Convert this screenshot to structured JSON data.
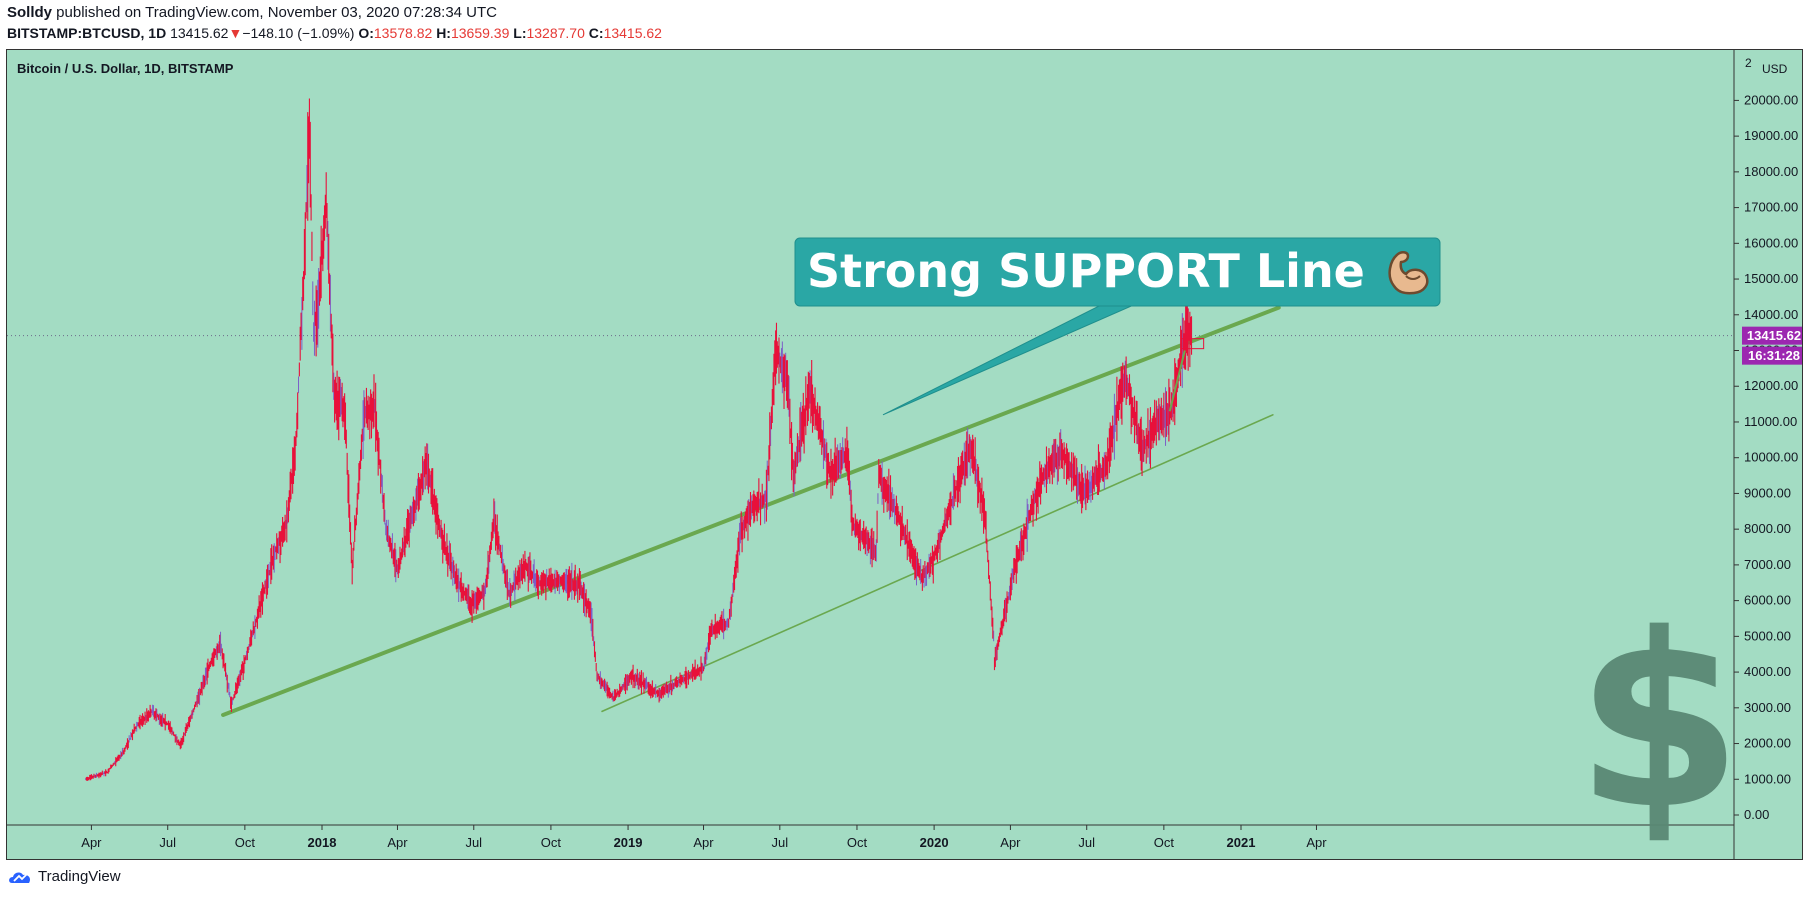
{
  "header": {
    "author": "Solldy",
    "published_text": " published on TradingView.com, November 03, 2020 07:28:34 UTC",
    "symbol": "BITSTAMP:BTCUSD, 1D",
    "last": "13415.62",
    "change_arrow": "▼",
    "change": "−148.10 (−1.09%)",
    "o_label": "O:",
    "o_value": "13578.82",
    "h_label": "H:",
    "h_value": "13659.39",
    "l_label": "L:",
    "l_value": "13287.70",
    "c_label": "C:",
    "c_value": "13415.62"
  },
  "footer": {
    "brand": "TradingView"
  },
  "colors": {
    "background": "#a3dcc3",
    "candle": "#e8103a",
    "wick_alt": "#7b5fc8",
    "trend_line": "#6aa84f",
    "callout_bg": "#2aa7a5",
    "price_badge": "#9c27b0",
    "dollar": "#5a8874"
  },
  "chart_data": {
    "type": "line",
    "title": "Bitcoin / U.S. Dollar, 1D, BITSTAMP",
    "currency": "USD",
    "y_ticks": [
      0,
      1000,
      2000,
      3000,
      4000,
      5000,
      6000,
      7000,
      8000,
      9000,
      10000,
      11000,
      12000,
      13000,
      14000,
      15000,
      16000,
      17000,
      18000,
      19000,
      20000
    ],
    "y_tick_labels": [
      "0.00",
      "1000.00",
      "2000.00",
      "3000.00",
      "4000.00",
      "5000.00",
      "6000.00",
      "7000.00",
      "8000.00",
      "9000.00",
      "10000.00",
      "11000.00",
      "12000.00",
      "13000.00",
      "14000.00",
      "15000.00",
      "16000.00",
      "17000.00",
      "18000.00",
      "19000.00",
      "20000.00"
    ],
    "y_top_label": "2",
    "x_ticks": [
      {
        "date": "2017-04-01",
        "label": "Apr",
        "bold": false
      },
      {
        "date": "2017-07-01",
        "label": "Jul",
        "bold": false
      },
      {
        "date": "2017-10-01",
        "label": "Oct",
        "bold": false
      },
      {
        "date": "2018-01-01",
        "label": "2018",
        "bold": true
      },
      {
        "date": "2018-04-01",
        "label": "Apr",
        "bold": false
      },
      {
        "date": "2018-07-01",
        "label": "Jul",
        "bold": false
      },
      {
        "date": "2018-10-01",
        "label": "Oct",
        "bold": false
      },
      {
        "date": "2019-01-01",
        "label": "2019",
        "bold": true
      },
      {
        "date": "2019-04-01",
        "label": "Apr",
        "bold": false
      },
      {
        "date": "2019-07-01",
        "label": "Jul",
        "bold": false
      },
      {
        "date": "2019-10-01",
        "label": "Oct",
        "bold": false
      },
      {
        "date": "2020-01-01",
        "label": "2020",
        "bold": true
      },
      {
        "date": "2020-04-01",
        "label": "Apr",
        "bold": false
      },
      {
        "date": "2020-07-01",
        "label": "Jul",
        "bold": false
      },
      {
        "date": "2020-10-01",
        "label": "Oct",
        "bold": false
      },
      {
        "date": "2021-01-01",
        "label": "2021",
        "bold": true
      },
      {
        "date": "2021-04-01",
        "label": "Apr",
        "bold": false
      }
    ],
    "series": [
      {
        "name": "BTCUSD",
        "points": [
          [
            "2017-03-25",
            1000
          ],
          [
            "2017-04-20",
            1200
          ],
          [
            "2017-05-10",
            1800
          ],
          [
            "2017-05-25",
            2500
          ],
          [
            "2017-06-12",
            2900
          ],
          [
            "2017-07-01",
            2550
          ],
          [
            "2017-07-16",
            1950
          ],
          [
            "2017-08-05",
            3200
          ],
          [
            "2017-08-20",
            4200
          ],
          [
            "2017-09-02",
            4800
          ],
          [
            "2017-09-15",
            3100
          ],
          [
            "2017-10-01",
            4300
          ],
          [
            "2017-10-20",
            5900
          ],
          [
            "2017-11-05",
            7300
          ],
          [
            "2017-11-20",
            8200
          ],
          [
            "2017-12-01",
            10500
          ],
          [
            "2017-12-10",
            15000
          ],
          [
            "2017-12-17",
            19300
          ],
          [
            "2017-12-22",
            13500
          ],
          [
            "2017-12-28",
            14500
          ],
          [
            "2018-01-06",
            17100
          ],
          [
            "2018-01-16",
            11500
          ],
          [
            "2018-01-28",
            11400
          ],
          [
            "2018-02-06",
            6900
          ],
          [
            "2018-02-20",
            11200
          ],
          [
            "2018-03-05",
            11400
          ],
          [
            "2018-03-18",
            8000
          ],
          [
            "2018-04-01",
            6900
          ],
          [
            "2018-04-12",
            7800
          ],
          [
            "2018-05-05",
            9800
          ],
          [
            "2018-05-28",
            7400
          ],
          [
            "2018-06-12",
            6500
          ],
          [
            "2018-06-28",
            5900
          ],
          [
            "2018-07-15",
            6300
          ],
          [
            "2018-07-25",
            8300
          ],
          [
            "2018-08-12",
            6200
          ],
          [
            "2018-08-31",
            7000
          ],
          [
            "2018-09-15",
            6500
          ],
          [
            "2018-10-10",
            6550
          ],
          [
            "2018-11-05",
            6400
          ],
          [
            "2018-11-18",
            5600
          ],
          [
            "2018-11-25",
            3900
          ],
          [
            "2018-12-15",
            3250
          ],
          [
            "2019-01-05",
            3900
          ],
          [
            "2019-02-07",
            3400
          ],
          [
            "2019-03-15",
            3900
          ],
          [
            "2019-04-01",
            4100
          ],
          [
            "2019-04-10",
            5200
          ],
          [
            "2019-05-01",
            5400
          ],
          [
            "2019-05-15",
            7900
          ],
          [
            "2019-05-30",
            8600
          ],
          [
            "2019-06-15",
            8900
          ],
          [
            "2019-06-26",
            13000
          ],
          [
            "2019-07-10",
            12200
          ],
          [
            "2019-07-17",
            9500
          ],
          [
            "2019-08-06",
            11900
          ],
          [
            "2019-08-30",
            9600
          ],
          [
            "2019-09-20",
            10100
          ],
          [
            "2019-09-26",
            8100
          ],
          [
            "2019-10-24",
            7400
          ],
          [
            "2019-10-27",
            9500
          ],
          [
            "2019-11-15",
            8600
          ],
          [
            "2019-12-17",
            6600
          ],
          [
            "2020-01-01",
            7200
          ],
          [
            "2020-01-20",
            8600
          ],
          [
            "2020-02-13",
            10300
          ],
          [
            "2020-03-01",
            8500
          ],
          [
            "2020-03-12",
            5000
          ],
          [
            "2020-03-13",
            4300
          ],
          [
            "2020-04-05",
            6800
          ],
          [
            "2020-04-29",
            8800
          ],
          [
            "2020-05-10",
            9500
          ],
          [
            "2020-06-01",
            10200
          ],
          [
            "2020-06-27",
            9000
          ],
          [
            "2020-07-25",
            9800
          ],
          [
            "2020-08-10",
            11800
          ],
          [
            "2020-08-17",
            12200
          ],
          [
            "2020-09-05",
            10200
          ],
          [
            "2020-09-20",
            10900
          ],
          [
            "2020-10-10",
            11300
          ],
          [
            "2020-10-22",
            12900
          ],
          [
            "2020-10-30",
            13600
          ],
          [
            "2020-11-03",
            13415.62
          ]
        ]
      }
    ],
    "trend_lines": [
      {
        "name": "support-main",
        "from": [
          "2017-09-05",
          2800
        ],
        "to": [
          "2021-02-15",
          14200
        ],
        "width": 4
      },
      {
        "name": "support-lower",
        "from": [
          "2018-12-01",
          2900
        ],
        "to": [
          "2021-02-08",
          11200
        ],
        "width": 1.6
      }
    ],
    "annotation": {
      "text": "Strong SUPPORT Line",
      "emoji": "💪",
      "pointer_to": [
        "2019-11-01",
        11200
      ]
    },
    "last_price_label": "13415.62",
    "countdown_label": "16:31:28",
    "last_price": 13415.62
  }
}
